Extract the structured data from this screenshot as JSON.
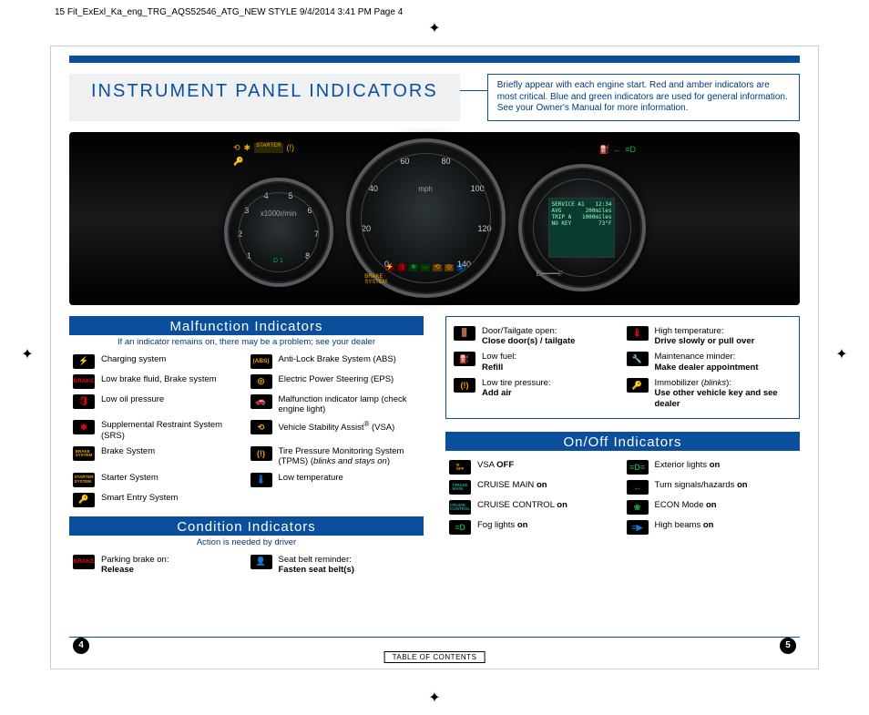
{
  "slug": "15 Fit_ExExl_Ka_eng_TRG_AQS52546_ATG_NEW STYLE  9/4/2014  3:41 PM  Page 4",
  "title": "INSTRUMENT PANEL INDICATORS",
  "intro": "Briefly appear with each engine start. Red and amber indicators are most critical. Blue and green indicators are used for general information. See your Owner's Manual for more information.",
  "colors": {
    "brand": "#0b4f9c",
    "red": "#e30613",
    "amber": "#f6a400",
    "green": "#1ea54a",
    "blue": "#1978d4",
    "teal": "#1aa39a",
    "black": "#000000"
  },
  "cluster": {
    "speed_unit": "mph",
    "rpm_unit": "x1000r/min",
    "speed_nums": [
      "0",
      "20",
      "40",
      "60",
      "80",
      "100",
      "120",
      "140"
    ],
    "rpm_nums": [
      "1",
      "2",
      "3",
      "4",
      "5",
      "6",
      "7",
      "8"
    ],
    "lcd_lines": [
      "SERVICE A1",
      "AVG",
      "TRIP A",
      "NO KEY",
      "12:34",
      "200miles",
      "1000miles",
      "73°F"
    ]
  },
  "malfunction": {
    "title": "Malfunction Indicators",
    "sub": "If an indicator remains on, there may be a problem; see your dealer",
    "items": [
      {
        "glyph": "⚡",
        "color": "#e30613",
        "text": "Charging system"
      },
      {
        "glyph": "(ABS)",
        "color": "#f6a400",
        "text": "Anti-Lock Brake System (ABS)",
        "small": true
      },
      {
        "glyph": "BRAKE",
        "color": "#e30613",
        "text": "Low brake fluid, Brake system",
        "small": true
      },
      {
        "glyph": "◎",
        "color": "#f6a400",
        "text": "Electric Power Steering (EPS)"
      },
      {
        "glyph": "🛢",
        "color": "#e30613",
        "text": "Low oil pressure"
      },
      {
        "glyph": "🚗",
        "color": "#f6a400",
        "text": "Malfunction indicator lamp (check engine light)"
      },
      {
        "glyph": "✱",
        "color": "#e30613",
        "text": "Supplemental Restraint System (SRS)"
      },
      {
        "glyph": "⟲",
        "color": "#f6a400",
        "html": "Vehicle Stability Assist<sup>®</sup> (VSA)"
      },
      {
        "glyph": "BRAKE\nSYSTEM",
        "color": "#f6a400",
        "text": "Brake System",
        "tiny": true
      },
      {
        "glyph": "(!)",
        "color": "#f6a400",
        "html": "Tire Pressure Monitoring System (TPMS) (<i>blinks and stays on</i>)"
      },
      {
        "glyph": "STARTER\nSYSTEM",
        "color": "#f6a400",
        "text": "Starter System",
        "tiny": true
      },
      {
        "glyph": "🌡",
        "color": "#1978d4",
        "text": "Low temperature"
      },
      {
        "glyph": "🔑",
        "color": "#f6a400",
        "text": "Smart Entry System"
      }
    ]
  },
  "condition": {
    "title": "Condition Indicators",
    "sub": "Action is needed by driver",
    "items": [
      {
        "glyph": "BRAKE",
        "color": "#e30613",
        "html": "Parking brake on:<br><b>Release</b>",
        "small": true
      },
      {
        "glyph": "👤",
        "color": "#e30613",
        "html": "Seat belt reminder:<br><b>Fasten seat belt(s)</b>"
      }
    ]
  },
  "condition_right": {
    "items": [
      {
        "glyph": "🚪",
        "color": "#e30613",
        "html": "Door/Tailgate open:<br><b>Close door(s) / tailgate</b>"
      },
      {
        "glyph": "🌡",
        "color": "#e30613",
        "html": "High temperature:<br><b>Drive slowly or pull over</b>"
      },
      {
        "glyph": "⛽",
        "color": "#f6a400",
        "html": "Low fuel:<br><b>Refill</b>"
      },
      {
        "glyph": "🔧",
        "color": "#f6a400",
        "html": "Maintenance minder:<br><b>Make dealer appointment</b>"
      },
      {
        "glyph": "(!)",
        "color": "#f6a400",
        "html": "Low tire pressure:<br><b>Add air</b>"
      },
      {
        "glyph": "🔑",
        "color": "#1ea54a",
        "html": "Immobilizer (<i>blinks</i>):<br><b>Use other vehicle key and see dealer</b>"
      }
    ]
  },
  "onoff": {
    "title": "On/Off Indicators",
    "items": [
      {
        "glyph": "⟲\nOFF",
        "color": "#f6a400",
        "html": "VSA <b>OFF</b>",
        "tiny": true
      },
      {
        "glyph": "≡D≡",
        "color": "#1ea54a",
        "html": "Exterior lights <b>on</b>"
      },
      {
        "glyph": "CRUISE\nMAIN",
        "color": "#1aa39a",
        "html": "CRUISE MAIN <b>on</b>",
        "tiny": true
      },
      {
        "glyph": "↔",
        "color": "#1ea54a",
        "html": "Turn signals/hazards <b>on</b>"
      },
      {
        "glyph": "CRUISE\nCONTROL",
        "color": "#1aa39a",
        "html": "CRUISE CONTROL <b>on</b>",
        "tiny": true
      },
      {
        "glyph": "❀",
        "color": "#1ea54a",
        "html": "ECON Mode <b>on</b>"
      },
      {
        "glyph": "≡D",
        "color": "#1ea54a",
        "html": "Fog lights <b>on</b>"
      },
      {
        "glyph": "≡▶",
        "color": "#1978d4",
        "html": "High beams <b>on</b>"
      }
    ]
  },
  "page_left": "4",
  "page_right": "5",
  "toc": "TABLE OF CONTENTS"
}
